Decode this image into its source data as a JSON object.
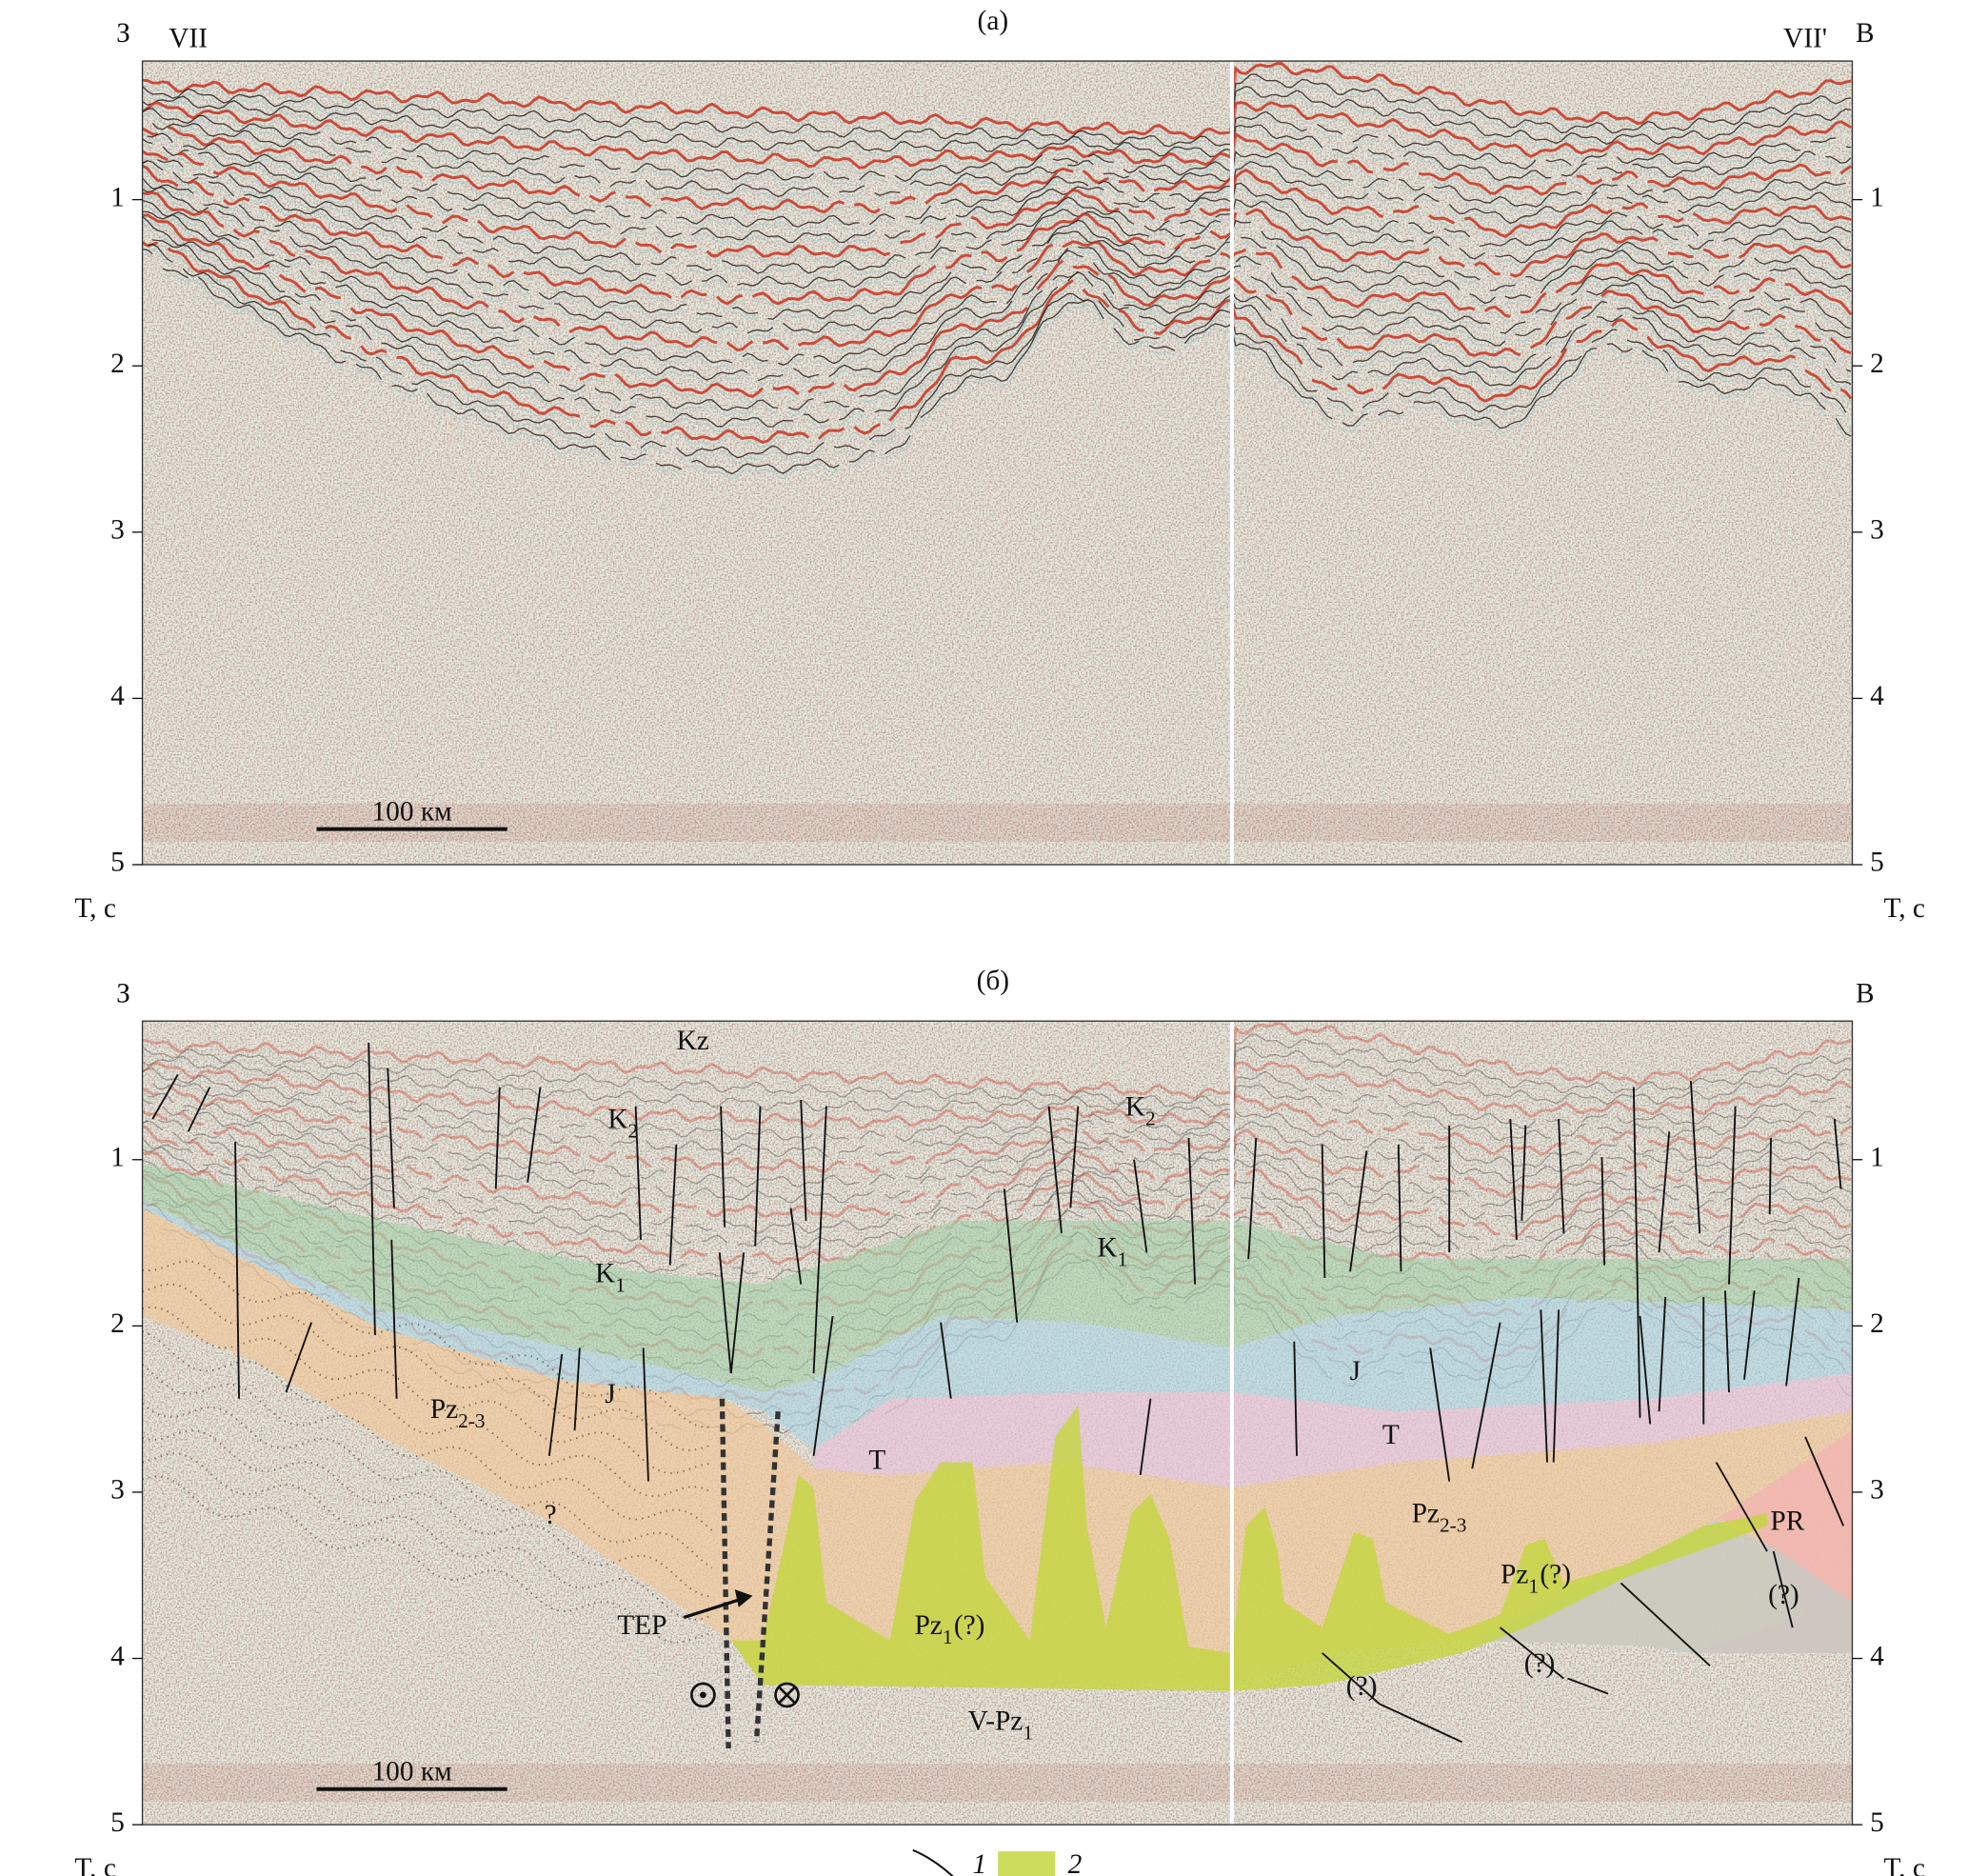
{
  "panel_a": {
    "label": "(a)",
    "west": "З",
    "east": "В",
    "start_label": "VII",
    "end_label": "VII'",
    "axis_title": "T, c",
    "yticks": [
      1,
      2,
      3,
      4,
      5
    ],
    "scale_bar": "100 км"
  },
  "panel_b": {
    "label": "(б)",
    "west": "З",
    "east": "В",
    "axis_title": "T, c",
    "yticks": [
      1,
      2,
      3,
      4,
      5
    ],
    "scale_bar": "100 км",
    "fault_label": "TEP",
    "units": [
      {
        "base": "Kz"
      },
      {
        "base": "K",
        "sub": "2"
      },
      {
        "base": "K",
        "sub": "2"
      },
      {
        "base": "K",
        "sub": "1"
      },
      {
        "base": "K",
        "sub": "1"
      },
      {
        "base": "J"
      },
      {
        "base": "J"
      },
      {
        "base": "Pz",
        "sub": "2-3"
      },
      {
        "base": "Pz",
        "sub": "2-3"
      },
      {
        "base": "?"
      },
      {
        "base": "T"
      },
      {
        "base": "T"
      },
      {
        "base": "Pz",
        "sub": "1",
        "suffix": "(?)"
      },
      {
        "base": "Pz",
        "sub": "1",
        "suffix": "(?)"
      },
      {
        "base": "PR"
      },
      {
        "base": "(?)"
      },
      {
        "base": "(?)"
      },
      {
        "base": "(?)"
      },
      {
        "base": "V-Pz",
        "sub": "1"
      }
    ]
  },
  "legend": [
    {
      "label": "1"
    },
    {
      "label": "2"
    }
  ]
}
